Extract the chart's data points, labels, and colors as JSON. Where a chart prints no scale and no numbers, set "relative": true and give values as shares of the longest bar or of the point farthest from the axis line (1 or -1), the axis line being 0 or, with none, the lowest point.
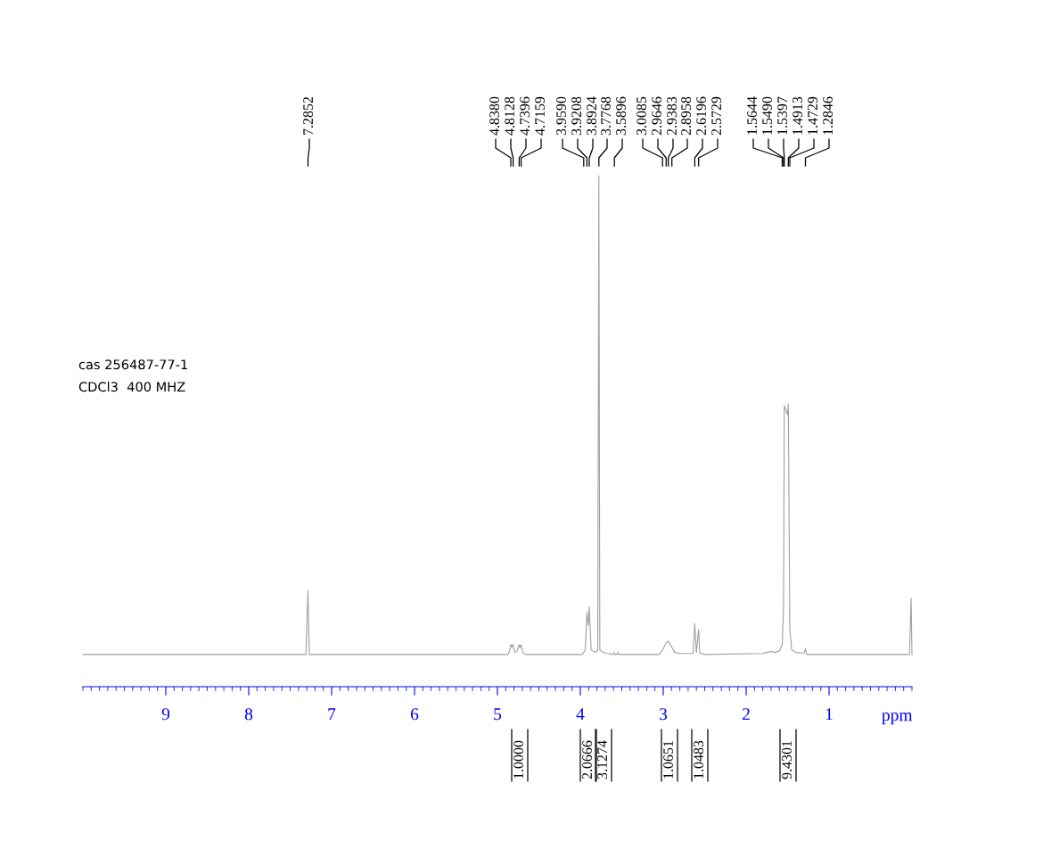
{
  "chart_data": {
    "type": "line",
    "relative": true,
    "xlabel": "ppm",
    "xlim": [
      10,
      0
    ],
    "xticks": [
      9,
      8,
      7,
      6,
      5,
      4,
      3,
      2,
      1
    ],
    "grid": false,
    "legend": false,
    "marker": "none",
    "line_style": "solid",
    "series": [
      {
        "color": "#a0a0a0",
        "x": [
          10.0,
          7.31,
          7.2852,
          7.27,
          4.87,
          4.85,
          4.838,
          4.825,
          4.8128,
          4.79,
          4.76,
          4.7396,
          4.728,
          4.7159,
          4.69,
          4.66,
          3.98,
          3.959,
          3.94,
          3.9208,
          3.905,
          3.8924,
          3.87,
          3.82,
          3.79,
          3.7768,
          3.765,
          3.72,
          3.68,
          3.6,
          3.5896,
          3.58,
          3.56,
          3.55,
          3.54,
          3.05,
          3.0085,
          2.9646,
          2.9383,
          2.8958,
          2.86,
          2.8,
          2.7,
          2.64,
          2.6196,
          2.6,
          2.5729,
          2.56,
          2.5,
          1.8,
          1.75,
          1.7,
          1.65,
          1.6,
          1.5644,
          1.549,
          1.5397,
          1.52,
          1.5,
          1.4913,
          1.4729,
          1.45,
          1.4,
          1.33,
          1.3,
          1.2846,
          1.27,
          0.03,
          0.01,
          0.0
        ],
        "values": [
          0.063,
          0.063,
          0.188,
          0.063,
          0.063,
          0.072,
          0.083,
          0.077,
          0.083,
          0.067,
          0.07,
          0.082,
          0.076,
          0.082,
          0.066,
          0.063,
          0.063,
          0.067,
          0.072,
          0.145,
          0.119,
          0.156,
          0.072,
          0.067,
          0.072,
          1.0,
          0.072,
          0.067,
          0.065,
          0.063,
          0.067,
          0.063,
          0.063,
          0.067,
          0.063,
          0.063,
          0.072,
          0.086,
          0.089,
          0.077,
          0.067,
          0.065,
          0.065,
          0.065,
          0.124,
          0.067,
          0.112,
          0.066,
          0.063,
          0.065,
          0.067,
          0.069,
          0.067,
          0.07,
          0.082,
          0.157,
          0.55,
          0.541,
          0.532,
          0.553,
          0.11,
          0.072,
          0.067,
          0.066,
          0.066,
          0.074,
          0.063,
          0.063,
          0.173,
          0.063
        ]
      }
    ],
    "annotations": [
      "cas 256487-77-1",
      "CDCl3  400 MHZ",
      "7.2852",
      "4.8380",
      "4.8128",
      "4.7396",
      "4.7159",
      "3.9590",
      "3.9208",
      "3.8924",
      "3.7768",
      "3.5896",
      "3.0085",
      "2.9646",
      "2.9383",
      "2.8958",
      "2.6196",
      "2.5729",
      "1.5644",
      "1.5490",
      "1.5397",
      "1.4913",
      "1.4729",
      "1.2846",
      "1.0000",
      "2.0666",
      "3.1274",
      "1.0651",
      "1.0483",
      "9.4301"
    ]
  }
}
